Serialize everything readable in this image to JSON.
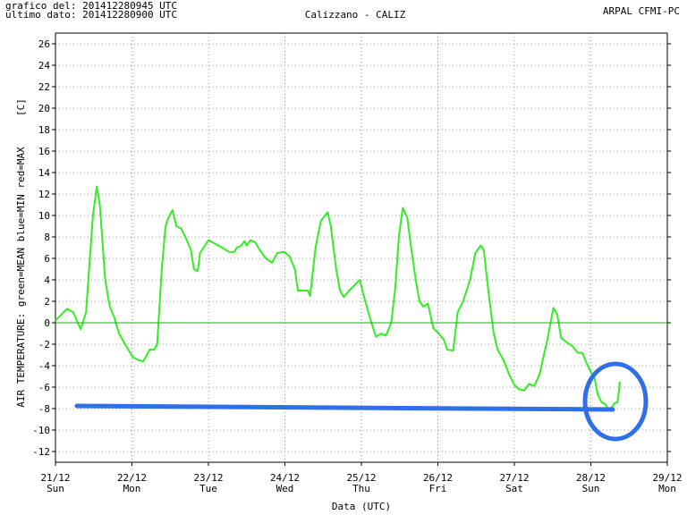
{
  "chart_data": {
    "type": "line",
    "header_left": [
      "grafico del: 201412280945 UTC",
      "ultimo dato: 201412280900 UTC"
    ],
    "title": "Calizzano - CALIZ",
    "header_right": "ARPAL CFMI-PC",
    "ylabel": "AIR TEMPERATURE: green=MEAN  blue=MIN  red=MAX",
    "yunit": "[C]",
    "xlabel": "Data (UTC)",
    "xlim": [
      0,
      8
    ],
    "ylim": [
      -13,
      27
    ],
    "xticks": [
      {
        "value": 0,
        "label": "21/12"
      },
      {
        "value": 1,
        "label": "22/12"
      },
      {
        "value": 2,
        "label": "23/12"
      },
      {
        "value": 3,
        "label": "24/12"
      },
      {
        "value": 4,
        "label": "25/12"
      },
      {
        "value": 5,
        "label": "26/12"
      },
      {
        "value": 6,
        "label": "27/12"
      },
      {
        "value": 7,
        "label": "28/12"
      },
      {
        "value": 8,
        "label": "29/12"
      }
    ],
    "xtick_days": [
      "Sun",
      "Mon",
      "Tue",
      "Wed",
      "Thu",
      "Fri",
      "Sat",
      "Sun",
      "Mon"
    ],
    "yticks": [
      -12,
      -10,
      -8,
      -6,
      -4,
      -2,
      0,
      2,
      4,
      6,
      8,
      10,
      12,
      14,
      16,
      18,
      20,
      22,
      24,
      26
    ],
    "grid": true,
    "hline": 0,
    "hline_color": "#22aa22",
    "series": [
      {
        "name": "MEAN",
        "color": "#33ee22",
        "x": [
          0,
          0.15,
          0.23,
          0.33,
          0.4,
          0.44,
          0.49,
          0.54,
          0.58,
          0.65,
          0.71,
          0.77,
          0.83,
          0.91,
          1.01,
          1.09,
          1.15,
          1.23,
          1.29,
          1.33,
          1.39,
          1.44,
          1.47,
          1.53,
          1.58,
          1.64,
          1.7,
          1.77,
          1.81,
          1.86,
          1.89,
          2.0,
          2.08,
          2.18,
          2.27,
          2.34,
          2.37,
          2.43,
          2.47,
          2.5,
          2.55,
          2.61,
          2.67,
          2.75,
          2.83,
          2.9,
          2.99,
          3.06,
          3.13,
          3.17,
          3.22,
          3.3,
          3.33,
          3.4,
          3.47,
          3.56,
          3.6,
          3.67,
          3.72,
          3.77,
          3.84,
          3.91,
          3.98,
          4.02,
          4.11,
          4.19,
          4.26,
          4.32,
          4.39,
          4.44,
          4.49,
          4.54,
          4.6,
          4.65,
          4.71,
          4.76,
          4.81,
          4.87,
          4.94,
          5.01,
          5.08,
          5.12,
          5.2,
          5.26,
          5.33,
          5.42,
          5.49,
          5.56,
          5.6,
          5.66,
          5.73,
          5.78,
          5.86,
          5.93,
          6.0,
          6.06,
          6.13,
          6.19,
          6.26,
          6.33,
          6.37,
          6.42,
          6.46,
          6.51,
          6.56,
          6.61,
          6.68,
          6.76,
          6.83,
          6.89,
          6.94,
          7.0,
          7.05,
          7.09,
          7.14,
          7.19,
          7.23,
          7.28,
          7.31,
          7.35,
          7.38
        ],
        "values": [
          0.2,
          1.3,
          1.0,
          -0.6,
          1,
          5,
          10,
          12.7,
          11,
          4,
          1.5,
          0.5,
          -1,
          -2,
          -3.2,
          -3.5,
          -3.6,
          -2.5,
          -2.5,
          -2,
          5,
          9,
          9.7,
          10.5,
          9,
          8.8,
          8,
          6.8,
          5,
          4.8,
          6.5,
          7.7,
          7.4,
          7,
          6.6,
          6.6,
          7,
          7.2,
          7.6,
          7.2,
          7.7,
          7.5,
          6.8,
          6,
          5.6,
          6.5,
          6.6,
          6.2,
          5,
          3,
          3,
          3,
          2.5,
          7,
          9.5,
          10.3,
          9,
          5,
          3,
          2.4,
          3,
          3.5,
          4,
          2.8,
          0.5,
          -1.3,
          -1,
          -1.2,
          0,
          3,
          8,
          10.7,
          9.8,
          7,
          4,
          2,
          1.5,
          1.8,
          -0.5,
          -1,
          -1.6,
          -2.5,
          -2.6,
          1,
          2,
          4,
          6.5,
          7.2,
          6.8,
          3,
          -1,
          -2.5,
          -3.5,
          -4.8,
          -5.8,
          -6.2,
          -6.3,
          -5.7,
          -5.9,
          -4.8,
          -3.5,
          -2,
          -0.5,
          1.4,
          0.8,
          -1.4,
          -1.8,
          -2.2,
          -2.8,
          -2.8,
          -3.7,
          -4.6,
          -5.2,
          -6.7,
          -7.4,
          -7.6,
          -8.1,
          -7.8,
          -7.5,
          -7.4,
          -5.5
        ]
      }
    ]
  }
}
